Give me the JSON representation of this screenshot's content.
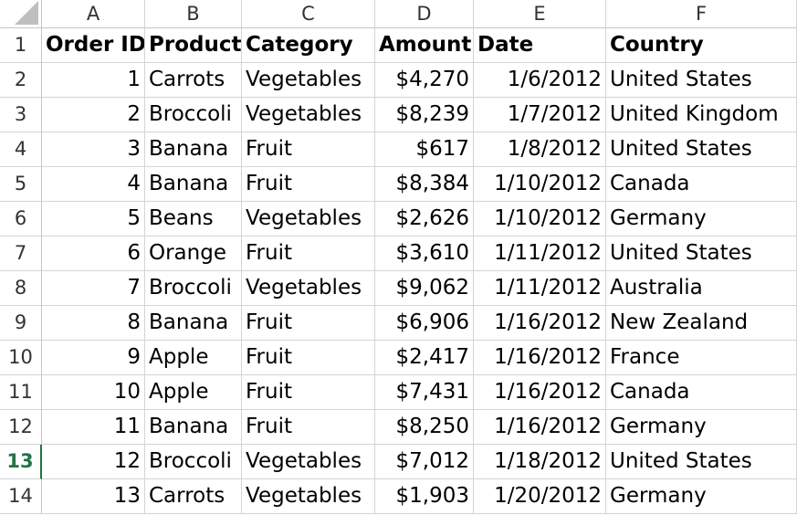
{
  "sheet": {
    "column_letters": [
      "A",
      "B",
      "C",
      "D",
      "E",
      "F"
    ],
    "row_numbers": [
      "1",
      "2",
      "3",
      "4",
      "5",
      "6",
      "7",
      "8",
      "9",
      "10",
      "11",
      "12",
      "13",
      "14"
    ],
    "active_row": "13",
    "headers": [
      "Order ID",
      "Product",
      "Category",
      "Amount",
      "Date",
      "Country"
    ],
    "rows": [
      [
        "1",
        "Carrots",
        "Vegetables",
        "$4,270",
        "1/6/2012",
        "United States"
      ],
      [
        "2",
        "Broccoli",
        "Vegetables",
        "$8,239",
        "1/7/2012",
        "United Kingdom"
      ],
      [
        "3",
        "Banana",
        "Fruit",
        "$617",
        "1/8/2012",
        "United States"
      ],
      [
        "4",
        "Banana",
        "Fruit",
        "$8,384",
        "1/10/2012",
        "Canada"
      ],
      [
        "5",
        "Beans",
        "Vegetables",
        "$2,626",
        "1/10/2012",
        "Germany"
      ],
      [
        "6",
        "Orange",
        "Fruit",
        "$3,610",
        "1/11/2012",
        "United States"
      ],
      [
        "7",
        "Broccoli",
        "Vegetables",
        "$9,062",
        "1/11/2012",
        "Australia"
      ],
      [
        "8",
        "Banana",
        "Fruit",
        "$6,906",
        "1/16/2012",
        "New Zealand"
      ],
      [
        "9",
        "Apple",
        "Fruit",
        "$2,417",
        "1/16/2012",
        "France"
      ],
      [
        "10",
        "Apple",
        "Fruit",
        "$7,431",
        "1/16/2012",
        "Canada"
      ],
      [
        "11",
        "Banana",
        "Fruit",
        "$8,250",
        "1/16/2012",
        "Germany"
      ],
      [
        "12",
        "Broccoli",
        "Vegetables",
        "$7,012",
        "1/18/2012",
        "United States"
      ],
      [
        "13",
        "Carrots",
        "Vegetables",
        "$1,903",
        "1/20/2012",
        "Germany"
      ]
    ],
    "colors": {
      "accent": "#217346",
      "gridline": "#d4d4d4"
    }
  }
}
